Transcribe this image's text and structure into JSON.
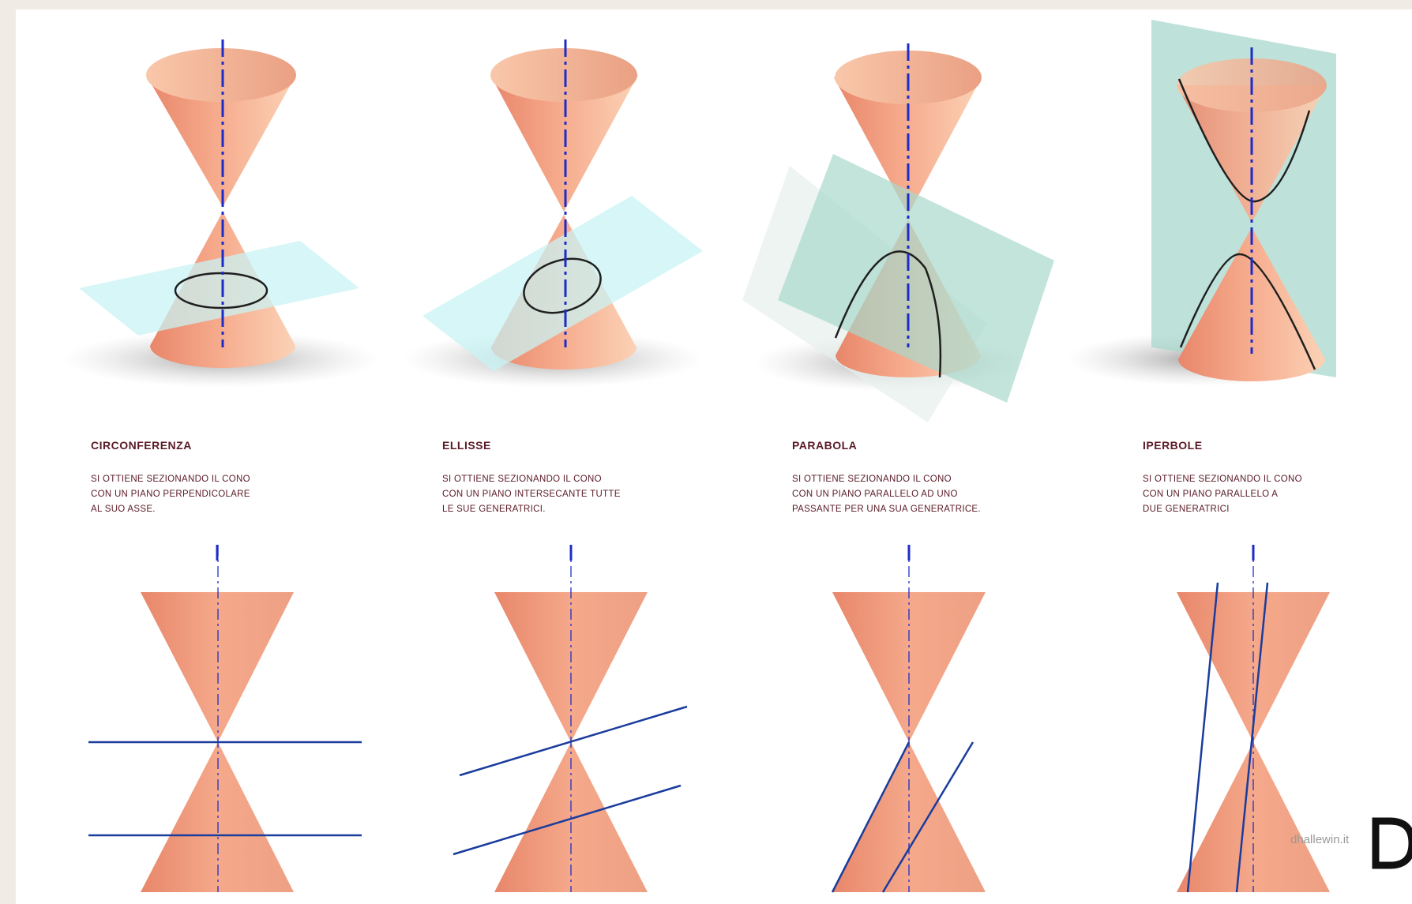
{
  "colors": {
    "cone": "#f2a184",
    "axis": "#1c2cc8",
    "plane": "#c9f3f4",
    "plane_teal": "#a8d8cc",
    "line": "#1a3c9c",
    "title_text": "#5a1a26"
  },
  "sections": [
    {
      "title": "CIRCONFERENZA",
      "description": [
        "SI OTTIENE SEZIONANDO IL CONO",
        "CON UN PIANO PERPENDICOLARE",
        "AL SUO ASSE."
      ]
    },
    {
      "title": "ELLISSE",
      "description": [
        "SI OTTIENE SEZIONANDO IL CONO",
        "CON UN PIANO INTERSECANTE TUTTE",
        "LE SUE GENERATRICI."
      ]
    },
    {
      "title": "PARABOLA",
      "description": [
        "SI OTTIENE SEZIONANDO IL CONO",
        "CON UN PIANO PARALLELO AD UNO",
        "PASSANTE PER UNA SUA GENERATRICE."
      ]
    },
    {
      "title": "IPERBOLE",
      "description": [
        "SI OTTIENE SEZIONANDO IL CONO",
        "CON UN PIANO PARALLELO A",
        "DUE GENERATRICI"
      ]
    }
  ],
  "watermark": "dhallewin.it",
  "logo_letter": "D"
}
